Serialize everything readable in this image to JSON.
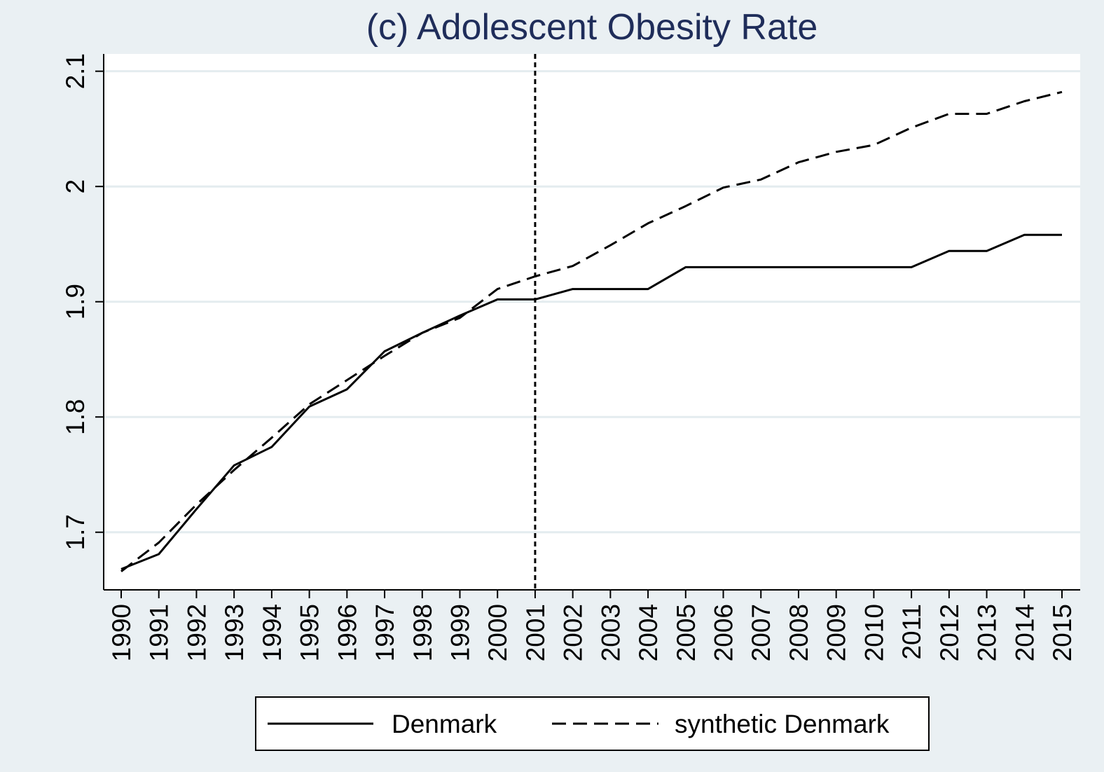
{
  "chart_data": {
    "type": "line",
    "title": "(c) Adolescent Obesity Rate",
    "xlabel": "",
    "ylabel": "",
    "x": [
      "1990",
      "1991",
      "1992",
      "1993",
      "1994",
      "1995",
      "1996",
      "1997",
      "1998",
      "1999",
      "2000",
      "2001",
      "2002",
      "2003",
      "2004",
      "2005",
      "2006",
      "2007",
      "2008",
      "2009",
      "2010",
      "2011",
      "2012",
      "2013",
      "2014",
      "2015"
    ],
    "ylim": [
      1.65,
      2.115
    ],
    "yticks": [
      "1.7",
      "1.8",
      "1.9",
      "2",
      "2.1"
    ],
    "grid": true,
    "legend_position": "bottom",
    "treatment_line_x": "2001",
    "series": [
      {
        "name": "Denmark",
        "style": "solid",
        "color": "#000000",
        "values": [
          1.668,
          1.681,
          1.72,
          1.758,
          1.774,
          1.809,
          1.824,
          1.857,
          1.873,
          1.888,
          1.902,
          1.902,
          1.911,
          1.911,
          1.911,
          1.93,
          1.93,
          1.93,
          1.93,
          1.93,
          1.93,
          1.93,
          1.944,
          1.944,
          1.958,
          1.958
        ]
      },
      {
        "name": "synthetic Denmark",
        "style": "dashed",
        "color": "#000000",
        "values": [
          1.666,
          1.691,
          1.724,
          1.754,
          1.782,
          1.811,
          1.832,
          1.853,
          1.873,
          1.886,
          1.911,
          1.922,
          1.931,
          1.949,
          1.968,
          1.983,
          1.999,
          2.006,
          2.021,
          2.03,
          2.036,
          2.051,
          2.063,
          2.063,
          2.074,
          2.082
        ]
      }
    ]
  }
}
